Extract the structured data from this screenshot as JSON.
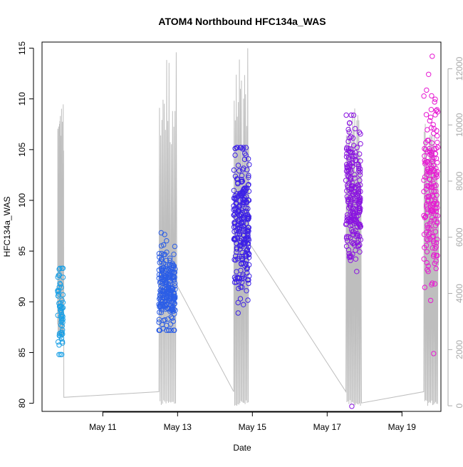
{
  "chart_data": {
    "type": "scatter",
    "title": "ATOM4 Northbound HFC134a_WAS",
    "xlabel": "Date",
    "ylabel": "HFC134a_WAS",
    "x_is_date": true,
    "xlim": [
      "2018-05-09T09:00",
      "2018-05-20T01:00"
    ],
    "ylim": [
      79.2,
      115.6
    ],
    "y2lim": [
      -200,
      12950
    ],
    "x_ticks": [
      {
        "value": "2018-05-11T00:00",
        "label": "May 11"
      },
      {
        "value": "2018-05-13T00:00",
        "label": "May 13"
      },
      {
        "value": "2018-05-15T00:00",
        "label": "May 15"
      },
      {
        "value": "2018-05-17T00:00",
        "label": "May 17"
      },
      {
        "value": "2018-05-19T00:00",
        "label": "May 19"
      }
    ],
    "y_ticks": [
      80,
      85,
      90,
      95,
      100,
      105,
      110,
      115
    ],
    "y2_ticks": [
      0,
      2000,
      4000,
      6000,
      8000,
      10000,
      12000
    ],
    "colors": {
      "altitude_line": "#bebebe",
      "right_axis": "#aaaaaa",
      "flight1": "#1aa0e6",
      "flight2": "#2c5ee6",
      "flight3": "#3d21e6",
      "flight4": "#8a14e0",
      "flight5": "#e61ad2"
    },
    "series": [
      {
        "color_key": "flight1",
        "t_start": "2018-05-09T19:00",
        "t_end": "2018-05-09T22:30",
        "y_center": 89.3,
        "y_spread": 2.2,
        "y_min": 84.8,
        "y_max": 93.3,
        "n": 60
      },
      {
        "color_key": "flight2",
        "t_start": "2018-05-12T12:00",
        "t_end": "2018-05-12T22:30",
        "y_center": 91.3,
        "y_spread": 2.0,
        "y_min": 87.2,
        "y_max": 96.8,
        "n": 230
      },
      {
        "color_key": "flight3",
        "t_start": "2018-05-14T12:00",
        "t_end": "2018-05-14T22:00",
        "y_center": 97.5,
        "y_spread": 3.6,
        "y_min": 88.9,
        "y_max": 105.2,
        "n": 260
      },
      {
        "color_key": "flight4",
        "t_start": "2018-05-17T12:00",
        "t_end": "2018-05-17T21:30",
        "y_center": 100.5,
        "y_spread": 3.2,
        "y_min": 79.7,
        "y_max": 108.4,
        "n": 220
      },
      {
        "color_key": "flight5",
        "t_start": "2018-05-19T14:00",
        "t_end": "2018-05-19T23:00",
        "y_center": 101.5,
        "y_spread": 4.8,
        "y_min": 84.9,
        "y_max": 114.2,
        "n": 180
      }
    ],
    "altitude_series": {
      "axis": "right",
      "flights": [
        {
          "t_start": "2018-05-09T19:00",
          "t_end": "2018-05-09T23:00",
          "max": 11000,
          "min": 2400,
          "end_value": 300
        },
        {
          "t_start": "2018-05-12T12:00",
          "t_end": "2018-05-12T23:30",
          "max": 12800,
          "min": 0,
          "end_value": 4300
        },
        {
          "t_start": "2018-05-14T12:00",
          "t_end": "2018-05-14T22:00",
          "max": 13100,
          "min": 0,
          "end_value": 5800
        },
        {
          "t_start": "2018-05-17T12:00",
          "t_end": "2018-05-17T22:00",
          "max": 10800,
          "min": 0,
          "end_value": 100
        },
        {
          "t_start": "2018-05-19T14:00",
          "t_end": "2018-05-19T23:30",
          "max": 10700,
          "min": 0,
          "end_value": 5000
        }
      ]
    }
  }
}
